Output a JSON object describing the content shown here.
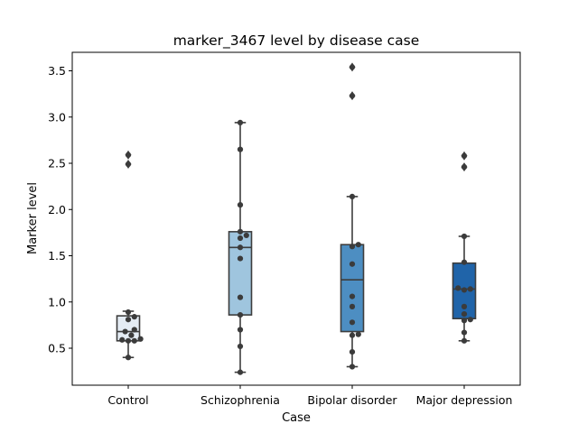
{
  "chart_data": {
    "type": "box",
    "title": "marker_3467 level by disease case",
    "xlabel": "Case",
    "ylabel": "Marker level",
    "ylim": [
      0.1,
      3.7
    ],
    "yticks": [
      "0.5",
      "1.0",
      "1.5",
      "2.0",
      "2.5",
      "3.0",
      "3.5"
    ],
    "ytick_values": [
      0.5,
      1.0,
      1.5,
      2.0,
      2.5,
      3.0,
      3.5
    ],
    "categories": [
      "Control",
      "Schizophrenia",
      "Bipolar disorder",
      "Major depression"
    ],
    "boxes": [
      {
        "q1": 0.58,
        "median": 0.68,
        "q3": 0.85,
        "whisker_low": 0.4,
        "whisker_high": 0.9,
        "outliers": [
          2.49,
          2.59
        ],
        "color": "#e4ecf4"
      },
      {
        "q1": 0.86,
        "median": 1.59,
        "q3": 1.76,
        "whisker_low": 0.24,
        "whisker_high": 2.94,
        "outliers": [],
        "color": "#9fc5de"
      },
      {
        "q1": 0.68,
        "median": 1.24,
        "q3": 1.62,
        "whisker_low": 0.3,
        "whisker_high": 2.14,
        "outliers": [
          3.23,
          3.54
        ],
        "color": "#4d8ec2"
      },
      {
        "q1": 0.82,
        "median": 1.14,
        "q3": 1.42,
        "whisker_low": 0.58,
        "whisker_high": 1.71,
        "outliers": [
          2.46,
          2.58
        ],
        "color": "#2064a9"
      }
    ],
    "points": [
      [
        0.4,
        0.58,
        0.58,
        0.59,
        0.6,
        0.64,
        0.68,
        0.7,
        0.81,
        0.84,
        0.89,
        2.49,
        2.59
      ],
      [
        0.24,
        0.52,
        0.7,
        0.86,
        1.05,
        1.47,
        1.59,
        1.69,
        1.72,
        1.76,
        2.05,
        2.65,
        2.94
      ],
      [
        0.3,
        0.46,
        0.64,
        0.65,
        0.78,
        0.95,
        1.06,
        1.41,
        1.6,
        1.62,
        2.14,
        3.23,
        3.54
      ],
      [
        0.58,
        0.67,
        0.8,
        0.81,
        0.87,
        0.95,
        1.13,
        1.14,
        1.15,
        1.43,
        1.71,
        2.46,
        2.58
      ]
    ]
  }
}
